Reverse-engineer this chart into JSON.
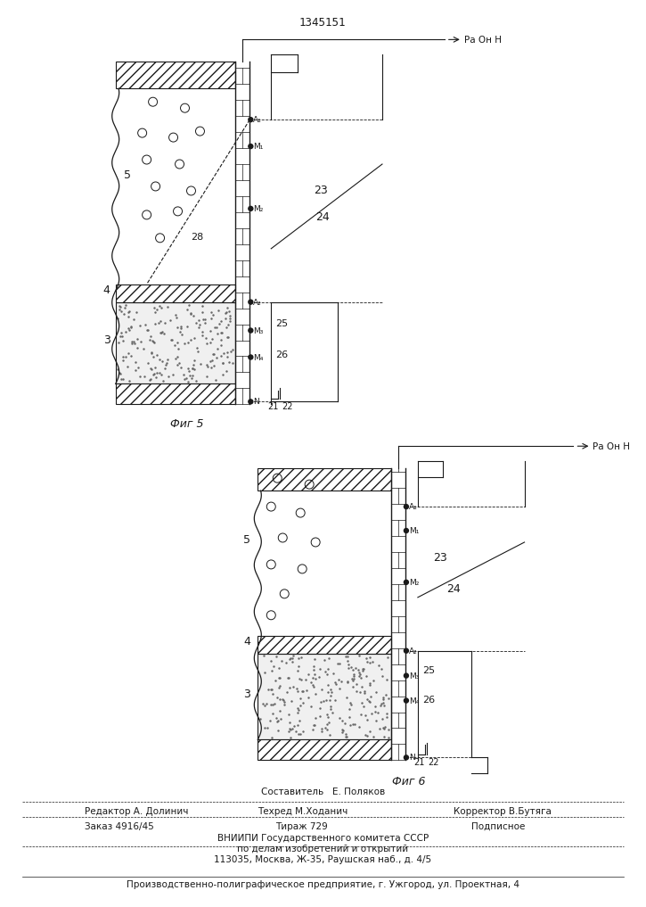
{
  "bg_color": "#ffffff",
  "patent_number": "1345151",
  "fig5_label": "Фиг 5",
  "fig6_label": "Фиг 6",
  "arrow_label": "Ра Он Н"
}
